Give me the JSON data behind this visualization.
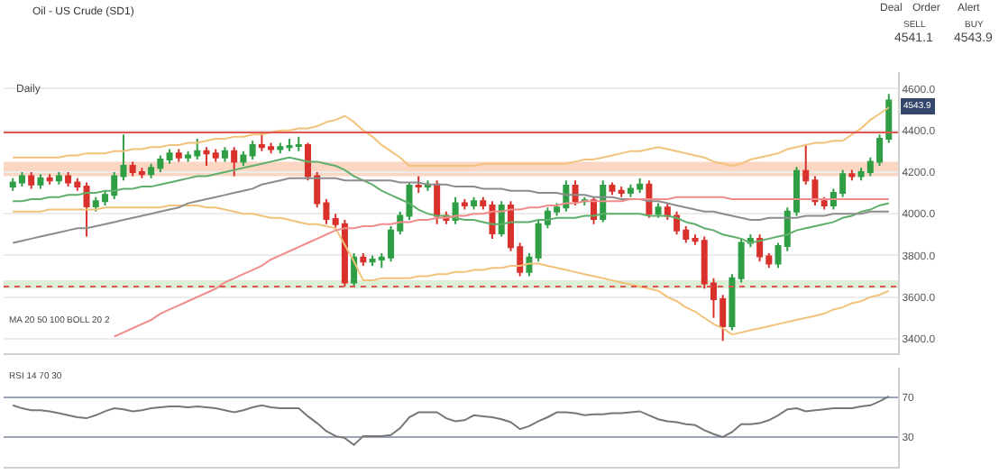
{
  "chart_data": [
    {
      "type": "candlestick",
      "title": "Oil - US Crude (SD1)",
      "annotations": [
        "Daily",
        "SELL",
        "4541.1",
        "BUY",
        "4543.9",
        "Deal",
        "Order",
        "Alert",
        "MA 20 50 100",
        "BOLL 20 2",
        "4543.9"
      ],
      "categories": [
        null,
        null,
        null,
        null,
        null,
        null,
        null,
        null,
        null,
        null,
        null,
        null,
        null,
        null,
        null,
        null,
        null,
        null,
        null,
        null,
        null,
        null,
        null,
        null,
        null,
        null,
        null,
        null,
        null,
        null,
        null,
        null,
        null,
        null,
        null,
        null,
        null,
        null,
        null,
        null,
        null,
        null,
        null,
        null,
        null,
        null,
        null,
        null,
        null,
        null,
        null,
        null,
        null,
        null,
        null,
        null,
        null,
        null,
        null,
        null,
        null,
        null,
        null,
        null,
        null,
        null,
        null,
        null,
        null,
        null,
        null,
        null,
        null,
        null,
        null,
        null,
        null,
        null,
        null,
        null,
        null,
        null,
        null,
        null,
        null,
        null,
        null,
        null,
        null,
        null,
        null,
        null,
        null,
        null,
        null,
        null
      ],
      "ohlc": [
        [
          4130,
          4170,
          4110,
          4150
        ],
        [
          4150,
          4200,
          4130,
          4180
        ],
        [
          4180,
          4200,
          4120,
          4140
        ],
        [
          4140,
          4190,
          4120,
          4170
        ],
        [
          4170,
          4190,
          4140,
          4160
        ],
        [
          4160,
          4200,
          4140,
          4180
        ],
        [
          4180,
          4200,
          4130,
          4150
        ],
        [
          4150,
          4170,
          4110,
          4130
        ],
        [
          4130,
          4150,
          3890,
          4035
        ],
        [
          4035,
          4080,
          4010,
          4060
        ],
        [
          4060,
          4110,
          4040,
          4090
        ],
        [
          4090,
          4200,
          4070,
          4180
        ],
        [
          4180,
          4380,
          4160,
          4230
        ],
        [
          4230,
          4250,
          4180,
          4200
        ],
        [
          4200,
          4220,
          4170,
          4190
        ],
        [
          4190,
          4240,
          4170,
          4220
        ],
        [
          4220,
          4280,
          4200,
          4260
        ],
        [
          4260,
          4310,
          4240,
          4290
        ],
        [
          4290,
          4310,
          4250,
          4270
        ],
        [
          4270,
          4300,
          4250,
          4280
        ],
        [
          4280,
          4360,
          4260,
          4300
        ],
        [
          4300,
          4320,
          4230,
          4290
        ],
        [
          4290,
          4310,
          4250,
          4270
        ],
        [
          4270,
          4320,
          4250,
          4300
        ],
        [
          4300,
          4320,
          4180,
          4250
        ],
        [
          4250,
          4300,
          4230,
          4280
        ],
        [
          4280,
          4350,
          4260,
          4330
        ],
        [
          4330,
          4390,
          4300,
          4320
        ],
        [
          4320,
          4340,
          4290,
          4310
        ],
        [
          4310,
          4340,
          4290,
          4320
        ],
        [
          4320,
          4360,
          4300,
          4325
        ],
        [
          4325,
          4370,
          4300,
          4330
        ],
        [
          4330,
          4340,
          4160,
          4180
        ],
        [
          4180,
          4200,
          4030,
          4050
        ],
        [
          4050,
          4070,
          3950,
          3975
        ],
        [
          3975,
          4000,
          3930,
          3950
        ],
        [
          3950,
          3970,
          3650,
          3670
        ],
        [
          3670,
          3810,
          3650,
          3790
        ],
        [
          3790,
          3810,
          3750,
          3770
        ],
        [
          3770,
          3800,
          3750,
          3780
        ],
        [
          3780,
          3810,
          3740,
          3790
        ],
        [
          3790,
          3940,
          3770,
          3920
        ],
        [
          3920,
          4010,
          3900,
          3990
        ],
        [
          3990,
          4150,
          3970,
          4135
        ],
        [
          4135,
          4180,
          4100,
          4130
        ],
        [
          4130,
          4160,
          4110,
          4140
        ],
        [
          4140,
          4160,
          3950,
          3990
        ],
        [
          3990,
          4010,
          3950,
          3970
        ],
        [
          3970,
          4080,
          3950,
          4050
        ],
        [
          4050,
          4070,
          4020,
          4040
        ],
        [
          4040,
          4080,
          4020,
          4060
        ],
        [
          4060,
          4080,
          4020,
          4040
        ],
        [
          4040,
          4060,
          3880,
          3905
        ],
        [
          3905,
          4060,
          3890,
          4040
        ],
        [
          4040,
          4060,
          3820,
          3840
        ],
        [
          3840,
          3860,
          3700,
          3720
        ],
        [
          3720,
          3810,
          3700,
          3790
        ],
        [
          3790,
          3970,
          3770,
          3950
        ],
        [
          3950,
          4030,
          3930,
          4010
        ],
        [
          4010,
          4050,
          3990,
          4030
        ],
        [
          4030,
          4160,
          4010,
          4135
        ],
        [
          4135,
          4160,
          4040,
          4060
        ],
        [
          4060,
          4080,
          4040,
          4065
        ],
        [
          4065,
          4080,
          3950,
          3975
        ],
        [
          3975,
          4160,
          3960,
          4135
        ],
        [
          4135,
          4150,
          4090,
          4110
        ],
        [
          4110,
          4130,
          4080,
          4100
        ],
        [
          4100,
          4140,
          4080,
          4120
        ],
        [
          4120,
          4170,
          4100,
          4140
        ],
        [
          4140,
          4160,
          3980,
          4000
        ],
        [
          4000,
          4050,
          3980,
          4030
        ],
        [
          4030,
          4050,
          3970,
          3990
        ],
        [
          3990,
          4010,
          3900,
          3920
        ],
        [
          3920,
          3940,
          3860,
          3880
        ],
        [
          3880,
          3900,
          3850,
          3870
        ],
        [
          3870,
          3890,
          3640,
          3665
        ],
        [
          3665,
          3690,
          3500,
          3590
        ],
        [
          3590,
          3610,
          3390,
          3460
        ],
        [
          3460,
          3710,
          3440,
          3690
        ],
        [
          3690,
          3880,
          3670,
          3860
        ],
        [
          3860,
          3900,
          3840,
          3880
        ],
        [
          3880,
          3900,
          3770,
          3795
        ],
        [
          3795,
          3810,
          3740,
          3760
        ],
        [
          3760,
          3860,
          3740,
          3845
        ],
        [
          3845,
          4030,
          3820,
          4010
        ],
        [
          4010,
          4225,
          3990,
          4205
        ],
        [
          4205,
          4335,
          4140,
          4160
        ],
        [
          4160,
          4180,
          4040,
          4060
        ],
        [
          4060,
          4080,
          4020,
          4040
        ],
        [
          4040,
          4120,
          4020,
          4100
        ],
        [
          4100,
          4210,
          4080,
          4190
        ],
        [
          4190,
          4210,
          4160,
          4180
        ],
        [
          4180,
          4220,
          4160,
          4200
        ],
        [
          4200,
          4270,
          4180,
          4250
        ],
        [
          4250,
          4380,
          4230,
          4360
        ],
        [
          4360,
          4575,
          4340,
          4543.9
        ]
      ],
      "series": [
        {
          "type": "line",
          "color": "#f2c27b",
          "values": [
            4270,
            4270,
            4270,
            4270,
            4270,
            4270,
            4280,
            4280,
            4290,
            4290,
            4290,
            4300,
            4300,
            4310,
            4310,
            4320,
            4320,
            4330,
            4330,
            4340,
            4340,
            4350,
            4360,
            4360,
            4370,
            4370,
            4380,
            4380,
            4390,
            4400,
            4400,
            4410,
            4410,
            4420,
            4440,
            4450,
            4470,
            4440,
            4400,
            4370,
            4330,
            4300,
            4270,
            4230,
            4230,
            4230,
            4230,
            4230,
            4230,
            4230,
            4230,
            4240,
            4240,
            4240,
            4240,
            4240,
            4240,
            4240,
            4240,
            4240,
            4240,
            4250,
            4260,
            4260,
            4270,
            4280,
            4290,
            4300,
            4300,
            4310,
            4320,
            4310,
            4300,
            4290,
            4280,
            4270,
            4250,
            4240,
            4230,
            4240,
            4260,
            4270,
            4280,
            4290,
            4310,
            4320,
            4330,
            4340,
            4340,
            4350,
            4350,
            4380,
            4410,
            4450,
            4480,
            4510
          ]
        },
        {
          "type": "line",
          "color": "#f2c27b",
          "values": [
            4010,
            4010,
            4010,
            4010,
            4020,
            4020,
            4020,
            4020,
            4020,
            4020,
            4030,
            4030,
            4030,
            4030,
            4030,
            4030,
            4030,
            4040,
            4040,
            4040,
            4040,
            4030,
            4030,
            4020,
            4010,
            4000,
            4000,
            3990,
            3980,
            3980,
            3970,
            3960,
            3950,
            3950,
            3940,
            3930,
            3850,
            3770,
            3680,
            3680,
            3690,
            3690,
            3690,
            3690,
            3700,
            3700,
            3710,
            3710,
            3720,
            3720,
            3730,
            3730,
            3740,
            3740,
            3750,
            3750,
            3760,
            3760,
            3750,
            3740,
            3730,
            3720,
            3710,
            3700,
            3690,
            3680,
            3670,
            3660,
            3650,
            3640,
            3630,
            3600,
            3580,
            3550,
            3530,
            3500,
            3470,
            3450,
            3420,
            3430,
            3440,
            3450,
            3460,
            3470,
            3480,
            3490,
            3500,
            3510,
            3520,
            3540,
            3550,
            3570,
            3580,
            3600,
            3610,
            3630
          ]
        },
        {
          "type": "line",
          "color": "#5fae6a",
          "values": [
            4060,
            4060,
            4070,
            4070,
            4080,
            4080,
            4090,
            4090,
            4100,
            4100,
            4110,
            4110,
            4120,
            4120,
            4130,
            4130,
            4140,
            4150,
            4160,
            4170,
            4180,
            4180,
            4190,
            4200,
            4210,
            4220,
            4230,
            4240,
            4250,
            4260,
            4270,
            4260,
            4250,
            4250,
            4240,
            4230,
            4210,
            4180,
            4160,
            4140,
            4110,
            4090,
            4070,
            4050,
            4020,
            4000,
            3990,
            3990,
            3980,
            3970,
            3970,
            3960,
            3950,
            3950,
            3960,
            3960,
            3960,
            3970,
            3970,
            3980,
            3980,
            3980,
            3990,
            3990,
            4000,
            4000,
            4000,
            4000,
            4000,
            3990,
            3990,
            3990,
            3980,
            3960,
            3950,
            3930,
            3920,
            3900,
            3890,
            3880,
            3860,
            3870,
            3880,
            3890,
            3900,
            3920,
            3930,
            3940,
            3950,
            3960,
            3980,
            3990,
            4010,
            4020,
            4040,
            4050
          ]
        },
        {
          "type": "line",
          "color": "#8c8c8c",
          "values": [
            3860,
            3870,
            3880,
            3890,
            3900,
            3910,
            3920,
            3930,
            3930,
            3940,
            3950,
            3960,
            3970,
            3980,
            3990,
            4000,
            4010,
            4020,
            4030,
            4050,
            4060,
            4070,
            4080,
            4090,
            4100,
            4110,
            4120,
            4140,
            4150,
            4160,
            4170,
            4170,
            4170,
            4170,
            4170,
            4170,
            4160,
            4160,
            4160,
            4160,
            4160,
            4160,
            4150,
            4150,
            4150,
            4140,
            4140,
            4140,
            4130,
            4130,
            4130,
            4120,
            4120,
            4120,
            4110,
            4110,
            4110,
            4100,
            4100,
            4100,
            4090,
            4090,
            4090,
            4080,
            4080,
            4080,
            4070,
            4070,
            4070,
            4060,
            4060,
            4050,
            4040,
            4030,
            4020,
            4010,
            4010,
            4000,
            3990,
            3980,
            3970,
            3970,
            3980,
            3980,
            3980,
            3980,
            3990,
            3990,
            3990,
            4000,
            4000,
            4000,
            4000,
            4010,
            4010,
            4010
          ]
        },
        {
          "type": "line",
          "color": "#f08c8c",
          "values": [
            null,
            null,
            null,
            null,
            null,
            null,
            null,
            null,
            null,
            null,
            null,
            3410,
            3430,
            3450,
            3470,
            3490,
            3520,
            3540,
            3560,
            3580,
            3600,
            3620,
            3640,
            3670,
            3690,
            3710,
            3730,
            3750,
            3780,
            3800,
            3820,
            3840,
            3860,
            3880,
            3900,
            3920,
            3930,
            3930,
            3940,
            3940,
            3950,
            3950,
            3960,
            3960,
            3970,
            3970,
            3980,
            3980,
            3990,
            3990,
            4000,
            4000,
            4010,
            4010,
            4020,
            4020,
            4030,
            4030,
            4040,
            4040,
            4050,
            4050,
            4060,
            4060,
            4060,
            4060,
            4060,
            4070,
            4070,
            4070,
            4070,
            4070,
            4080,
            4080,
            4080,
            4080,
            4080,
            4080,
            4070,
            4070,
            4070,
            4070,
            4070,
            4070,
            4070,
            4070,
            4070,
            4070,
            4070,
            4070,
            4070,
            4070,
            4070,
            4070,
            4070,
            4070
          ]
        }
      ],
      "ylim": [
        3330,
        4680
      ],
      "yticks": [
        {
          "value": 3400,
          "label": "3400.0"
        },
        {
          "value": 3600,
          "label": "3600.0"
        },
        {
          "value": 3800,
          "label": "3800.0"
        },
        {
          "value": 4000,
          "label": "4000.0"
        },
        {
          "value": 4200,
          "label": "4200.0"
        },
        {
          "value": 4400,
          "label": "4400.0"
        },
        {
          "value": 4600,
          "label": "4600.0"
        }
      ],
      "tick_labels": "y",
      "grid": "y",
      "ref_lines": [
        {
          "axis": "y",
          "value": 4390,
          "color": "#e0554f",
          "line_style": "solid"
        },
        {
          "axis": "y",
          "value": 3650,
          "color": "#e0554f",
          "line_style": "dotted"
        }
      ],
      "bands": [
        {
          "axis": "y",
          "from": 4180,
          "to": 4250,
          "color": "#f9c4a8"
        },
        {
          "axis": "y",
          "from": 3640,
          "to": 3680,
          "color": "#cfe6c4"
        }
      ]
    },
    {
      "type": "line",
      "annotations": [
        "RSI 14 70 30"
      ],
      "color": "#777777",
      "categories": [
        null,
        null,
        null,
        null,
        null,
        null,
        null,
        null,
        null,
        null,
        null,
        null,
        null,
        null,
        null,
        null,
        null,
        null,
        null,
        null,
        null,
        null,
        null,
        null,
        null,
        null,
        null,
        null,
        null,
        null,
        null,
        null,
        null,
        null,
        null,
        null,
        null,
        null,
        null,
        null,
        null,
        null,
        null,
        null,
        null,
        null,
        null,
        null,
        null,
        null,
        null,
        null,
        null,
        null,
        null,
        null,
        null,
        null,
        null,
        null,
        null,
        null,
        null,
        null,
        null,
        null,
        null,
        null,
        null,
        null,
        null,
        null,
        null,
        null,
        null,
        null,
        null,
        null,
        null,
        null,
        null,
        null,
        null,
        null,
        null,
        null,
        null,
        null,
        null,
        null,
        null,
        null,
        null,
        null,
        null,
        null
      ],
      "values": [
        62,
        59,
        57,
        57,
        56,
        54,
        52,
        50,
        49,
        52,
        56,
        59,
        58,
        56,
        57,
        59,
        60,
        61,
        61,
        60,
        61,
        60,
        59,
        57,
        55,
        57,
        60,
        62,
        60,
        59,
        59,
        59,
        51,
        44,
        36,
        31,
        29,
        22,
        31,
        31,
        31,
        32,
        39,
        50,
        55,
        55,
        55,
        49,
        46,
        47,
        52,
        51,
        50,
        48,
        45,
        38,
        41,
        46,
        50,
        55,
        55,
        54,
        52,
        53,
        53,
        54,
        54,
        55,
        56,
        52,
        48,
        46,
        45,
        43,
        42,
        37,
        33,
        30,
        35,
        43,
        43,
        44,
        47,
        52,
        58,
        59,
        56,
        57,
        58,
        59,
        59,
        59,
        61,
        62,
        66,
        71
      ],
      "ylim": [
        0,
        100
      ],
      "yticks": [
        30,
        70
      ],
      "tick_labels": "y",
      "grid": "y"
    }
  ]
}
